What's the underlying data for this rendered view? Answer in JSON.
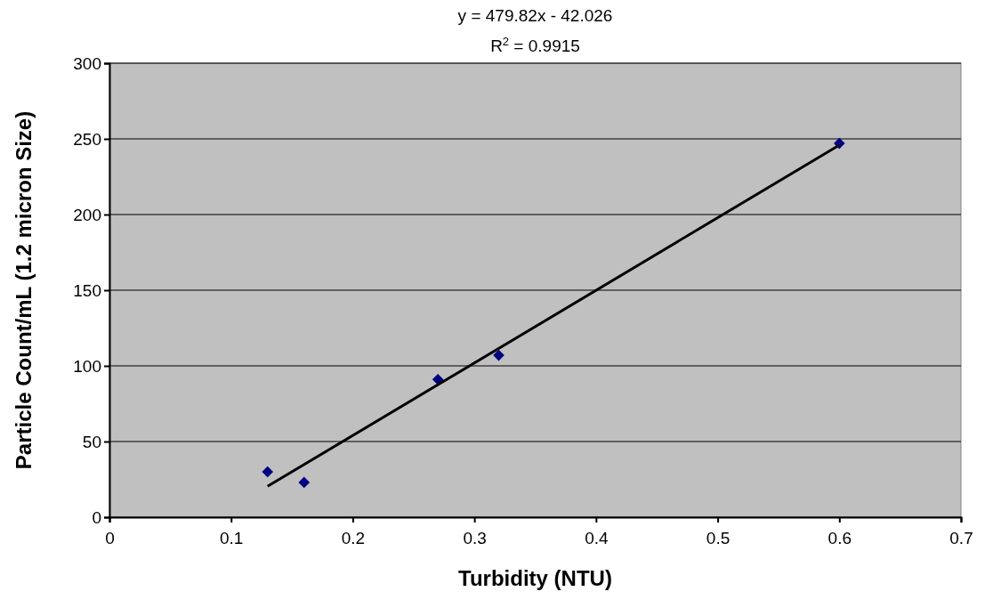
{
  "chart_data": {
    "type": "scatter",
    "xlabel": "Turbidity (NTU)",
    "ylabel": "Particle Count/mL (1.2 micron Size)",
    "annotations": [
      "y = 479.82x - 42.026",
      "R$^{2}$ = 0.9915"
    ],
    "series": [
      {
        "color": "#000080",
        "x": [
          0.13,
          0.16,
          0.27,
          0.32,
          0.6
        ],
        "values": [
          30,
          23,
          91,
          107,
          247
        ],
        "marker": "diamond"
      },
      {
        "type": "line",
        "color": "#000000",
        "x": [
          0.13,
          0.6
        ],
        "values": [
          20.4,
          245.9
        ],
        "marker": "none",
        "line_style": "solid"
      }
    ],
    "xlim": [
      0,
      0.7
    ],
    "xticks": [
      0,
      0.1,
      0.2,
      0.3,
      0.4,
      0.5,
      0.6,
      0.7
    ],
    "ylim": [
      0,
      300
    ],
    "yticks": [
      0,
      50,
      100,
      150,
      200,
      250,
      300
    ],
    "grid": "y"
  }
}
